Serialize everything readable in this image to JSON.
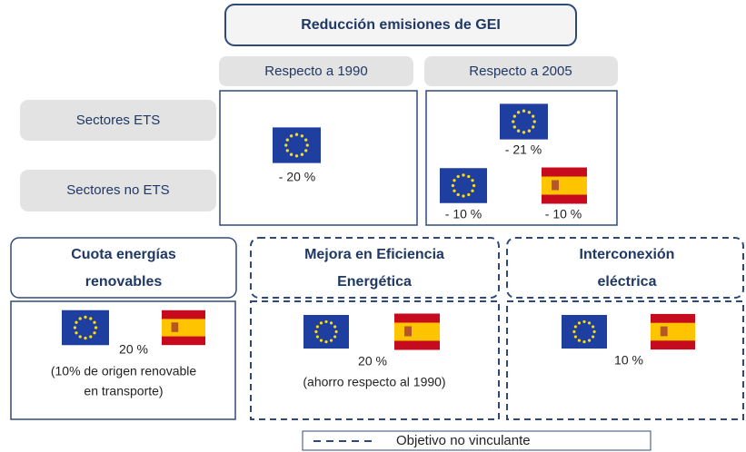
{
  "header": {
    "title": "Reducción emisiones de GEI"
  },
  "columns": [
    "Respecto a 1990",
    "Respecto a 2005"
  ],
  "rows": [
    "Sectores ETS",
    "Sectores no ETS"
  ],
  "ghg": {
    "ets_1990": "- 20 %",
    "ets_2005": "- 21 %",
    "non_ets_eu_2005": "- 10 %",
    "non_ets_es_2005": "- 10 %"
  },
  "targets": [
    {
      "title_lines": [
        "Cuota energías",
        "renovables"
      ],
      "value": "20 %",
      "note_lines": [
        "(10% de origen renovable",
        "en transporte)"
      ]
    },
    {
      "title_lines": [
        "Mejora en Eficiencia",
        "Energética"
      ],
      "value": "20 %",
      "note_lines": [
        "(ahorro respecto al 1990)"
      ]
    },
    {
      "title_lines": [
        "Interconexión",
        "eléctrica"
      ],
      "value": "10 %",
      "note_lines": []
    }
  ],
  "legend": {
    "label": "Objetivo no vinculante"
  }
}
